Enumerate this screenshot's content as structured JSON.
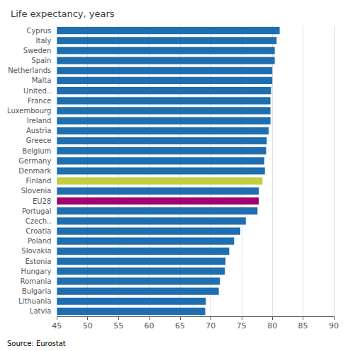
{
  "chart_data": {
    "type": "bar",
    "orientation": "horizontal",
    "title": "Life expectancy, years",
    "annotations": [
      "Source: Eurostat"
    ],
    "categories": [
      "Cyprus",
      "Italy",
      "Sweden",
      "Spain",
      "Netherlands",
      "Malta",
      "United..",
      "France",
      "Luxembourg",
      "Ireland",
      "Austria",
      "Greece",
      "Belgium",
      "Germany",
      "Denmark",
      "Finland",
      "Slovenia",
      "EU28",
      "Portugal",
      "Czech..",
      "Croatia",
      "Poland",
      "Slovakia",
      "Estonia",
      "Hungary",
      "Romania",
      "Bulgaria",
      "Lithuania",
      "Latvia"
    ],
    "values": [
      81.2,
      80.7,
      80.4,
      80.4,
      80.0,
      80.0,
      79.8,
      79.7,
      79.7,
      79.7,
      79.4,
      79.1,
      79.0,
      78.7,
      78.8,
      78.4,
      77.8,
      77.8,
      77.6,
      75.7,
      74.8,
      73.8,
      73.0,
      72.4,
      72.3,
      71.5,
      71.3,
      69.2,
      69.1
    ],
    "colors": [
      "#1F6EB0",
      "#1F6EB0",
      "#1F6EB0",
      "#1F6EB0",
      "#1F6EB0",
      "#1F6EB0",
      "#1F6EB0",
      "#1F6EB0",
      "#1F6EB0",
      "#1F6EB0",
      "#1F6EB0",
      "#1F6EB0",
      "#1F6EB0",
      "#1F6EB0",
      "#1F6EB0",
      "#BFCE45",
      "#1F6EB0",
      "#A0006E",
      "#1F6EB0",
      "#1F6EB0",
      "#1F6EB0",
      "#1F6EB0",
      "#1F6EB0",
      "#1F6EB0",
      "#1F6EB0",
      "#1F6EB0",
      "#1F6EB0",
      "#1F6EB0",
      "#1F6EB0"
    ],
    "xlim": [
      45,
      90
    ],
    "xticks": [
      45,
      50,
      55,
      60,
      65,
      70,
      75,
      80,
      85,
      90
    ],
    "grid": true
  }
}
